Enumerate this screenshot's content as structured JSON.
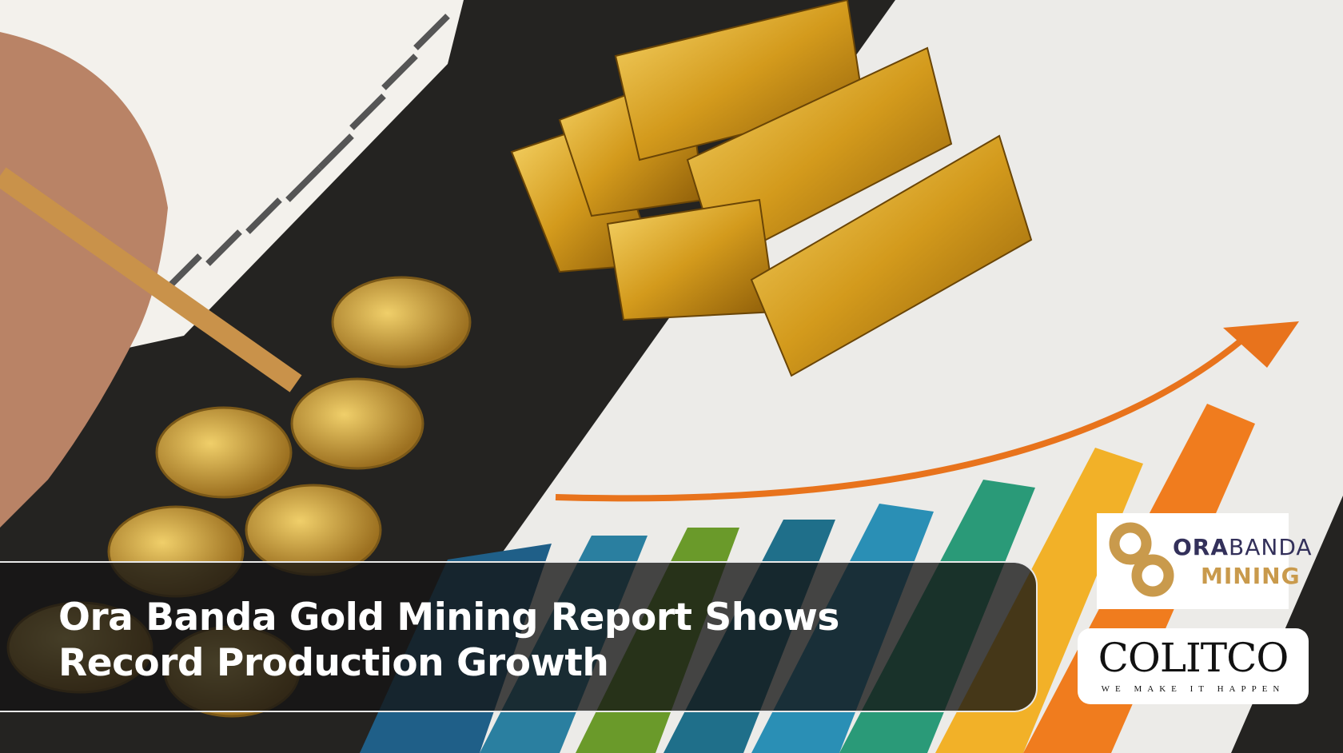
{
  "headline": "Ora Banda Gold Mining Report Shows Record Production Growth",
  "logos": {
    "ora_banda": {
      "word1_bold": "ORA",
      "word1_light": "BANDA",
      "word2": "MINING",
      "color_gold": "#c99a4c",
      "color_navy": "#33305a"
    },
    "colitco": {
      "name": "COLITCO",
      "tagline": "WE MAKE IT HAPPEN"
    }
  },
  "background_colors": [
    "#2a7fa0",
    "#1f6f8a",
    "#6a9a2a",
    "#2a7fa0",
    "#2a8fb5",
    "#2a9a78",
    "#f2b128",
    "#f07c1e"
  ]
}
